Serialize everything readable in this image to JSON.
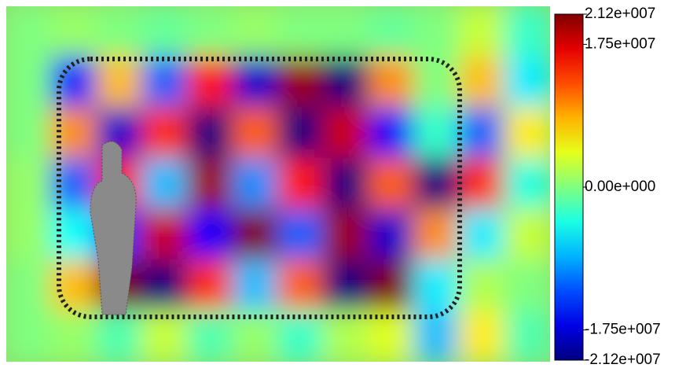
{
  "chart_data": {
    "type": "heatmap",
    "colormap": "jet",
    "z": [
      [
        0,
        1000000,
        0,
        -1000000,
        0,
        1000000,
        0,
        0,
        -1000000,
        0,
        3000000,
        -3000000
      ],
      [
        0,
        -15000000,
        8000000,
        -12000000,
        15000000,
        -18000000,
        20000000,
        -21200000,
        10000000,
        0,
        8000000,
        -6000000
      ],
      [
        0,
        10000000,
        -18000000,
        14000000,
        -21200000,
        12000000,
        -21200000,
        18000000,
        -16000000,
        -3000000,
        -12000000,
        6000000
      ],
      [
        1000000,
        -12000000,
        16000000,
        -8000000,
        20000000,
        -10000000,
        15000000,
        -21200000,
        12000000,
        -21200000,
        14000000,
        -4000000
      ],
      [
        1000000,
        -5000000,
        -14000000,
        18000000,
        -16000000,
        21200000,
        -12000000,
        20000000,
        -18000000,
        10000000,
        -6000000,
        3000000
      ],
      [
        0,
        8000000,
        21200000,
        -21200000,
        14000000,
        -8000000,
        12000000,
        -21200000,
        21200000,
        -6000000,
        2000000,
        0
      ],
      [
        0,
        1000000,
        -2000000,
        3000000,
        -2000000,
        1000000,
        -3000000,
        2000000,
        4000000,
        -8000000,
        6000000,
        -2000000
      ]
    ],
    "zlim": [
      -21200000,
      21200000
    ],
    "zticks": [
      {
        "value": 21200000,
        "label": "2.12e+007"
      },
      {
        "value": 17500000,
        "label": "1.75e+007"
      },
      {
        "value": 0,
        "label": "0.00e+000"
      },
      {
        "value": -17500000,
        "label": "-1.75e+007"
      },
      {
        "value": -21200000,
        "label": "-2.12e+007"
      }
    ]
  }
}
